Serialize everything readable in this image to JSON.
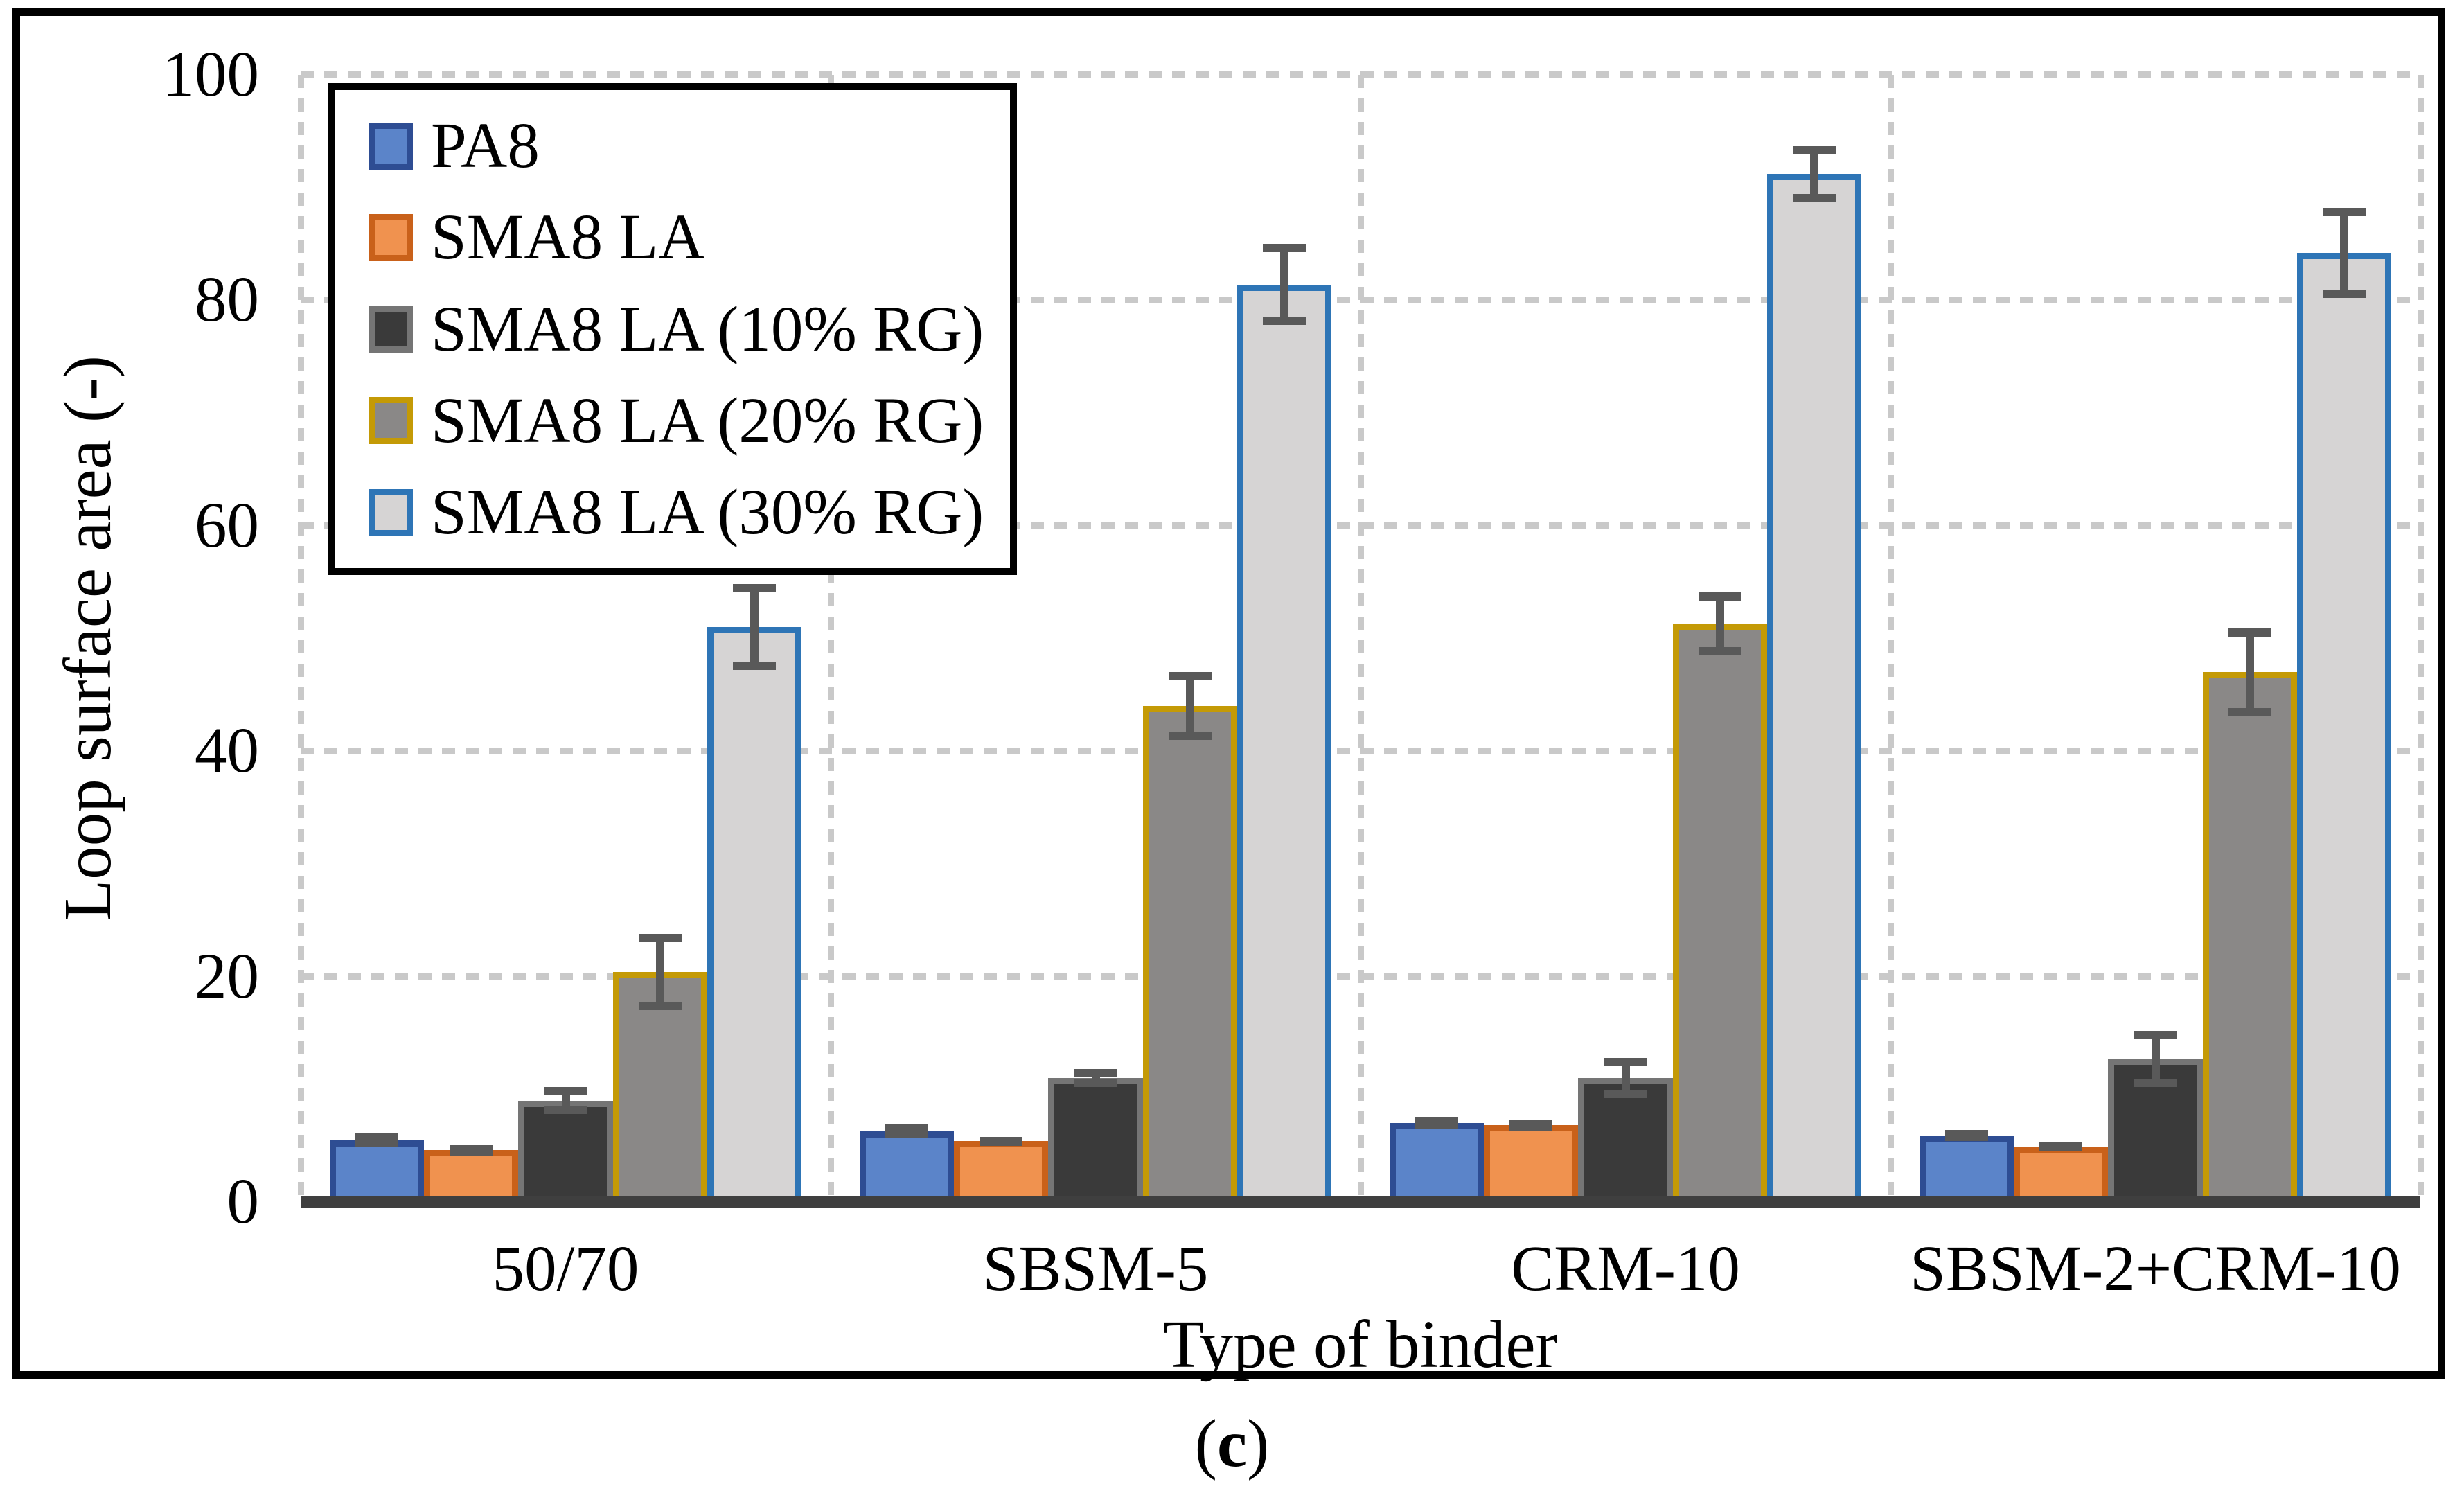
{
  "figure": {
    "caption": {
      "prefix": "(",
      "label": "c",
      "suffix": ")"
    }
  },
  "chart_data": {
    "type": "bar",
    "title": "",
    "xlabel": "Type of binder",
    "ylabel": "Loop surface area (-)",
    "ylim": [
      0,
      100
    ],
    "yticks": [
      0,
      20,
      40,
      60,
      80,
      100
    ],
    "grid": "dashed",
    "legend_position": "top-left",
    "categories": [
      "50/70",
      "SBSM-5",
      "CRM-10",
      "SBSM-2+CRM-10"
    ],
    "series": [
      {
        "name": "PA8",
        "fill": "#5b84c9",
        "border": "#2e4d93",
        "values": [
          5.5,
          6.3,
          7.0,
          5.9
        ],
        "errors": [
          0.6,
          0.6,
          0.5,
          0.5
        ]
      },
      {
        "name": "SMA8 LA",
        "fill": "#f0924f",
        "border": "#c9611a",
        "values": [
          4.6,
          5.4,
          6.8,
          4.9
        ],
        "errors": [
          0.5,
          0.4,
          0.5,
          0.3
        ]
      },
      {
        "name": "SMA8 LA (10% RG)",
        "fill": "#3a3a3a",
        "border": "#757575",
        "values": [
          9.0,
          11.0,
          11.0,
          12.7
        ],
        "errors": [
          1.2,
          0.8,
          1.8,
          2.5
        ]
      },
      {
        "name": "SMA8 LA (20% RG)",
        "fill": "#8a8887",
        "border": "#c49a06",
        "values": [
          20.4,
          44.0,
          51.3,
          47.0
        ],
        "errors": [
          3.4,
          3.0,
          2.8,
          3.9
        ]
      },
      {
        "name": "SMA8 LA (30% RG)",
        "fill": "#d6d4d4",
        "border": "#2e75b6",
        "values": [
          51.0,
          81.4,
          91.2,
          84.2
        ],
        "errors": [
          3.8,
          3.6,
          2.5,
          4.0
        ]
      }
    ],
    "error_bar_color": "#595959",
    "axis_line_color": "#3f3f3f",
    "gridline_color": "#c9c9c9"
  }
}
